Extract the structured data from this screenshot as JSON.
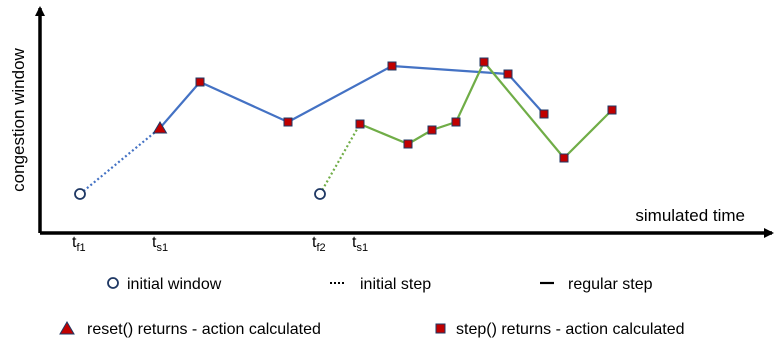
{
  "colors": {
    "series1": "#4472C4",
    "series2": "#70AD47",
    "marker_fill": "#C00000",
    "marker_edge": "#1F3864",
    "axis": "#000000"
  },
  "axes": {
    "ylabel": "congestion window",
    "xlabel": "simulated time",
    "ticks": [
      {
        "base": "t",
        "sub": "f1",
        "x": 1.0
      },
      {
        "base": "t",
        "sub": "s1",
        "x": 3.0
      },
      {
        "base": "t",
        "sub": "f2",
        "x": 7.0
      },
      {
        "base": "t",
        "sub": "s1",
        "x": 8.0
      }
    ]
  },
  "legend": {
    "initial_window": "initial window",
    "initial_step": "initial step",
    "regular_step": "regular step",
    "reset_returns": "reset() returns - action calculated",
    "step_returns": "step() returns - action calculated"
  },
  "chart_data": {
    "type": "line",
    "xlabel": "simulated time",
    "ylabel": "congestion window",
    "xlim": [
      0,
      15
    ],
    "ylim": [
      0,
      10
    ],
    "series": [
      {
        "color": "#4472C4",
        "initial": {
          "x": 1.0,
          "y": 2.0
        },
        "reset": {
          "x": 3.0,
          "y": 5.3
        },
        "steps": [
          {
            "x": 4.0,
            "y": 7.6
          },
          {
            "x": 6.2,
            "y": 5.6
          },
          {
            "x": 8.8,
            "y": 8.4
          },
          {
            "x": 11.7,
            "y": 8.0
          },
          {
            "x": 12.6,
            "y": 6.0
          }
        ]
      },
      {
        "color": "#70AD47",
        "initial": {
          "x": 7.0,
          "y": 2.0
        },
        "steps": [
          {
            "x": 8.0,
            "y": 5.5
          },
          {
            "x": 9.2,
            "y": 4.5
          },
          {
            "x": 9.8,
            "y": 5.2
          },
          {
            "x": 10.4,
            "y": 5.6
          },
          {
            "x": 11.1,
            "y": 8.6
          },
          {
            "x": 13.1,
            "y": 3.8
          },
          {
            "x": 14.3,
            "y": 6.2
          }
        ]
      }
    ]
  }
}
